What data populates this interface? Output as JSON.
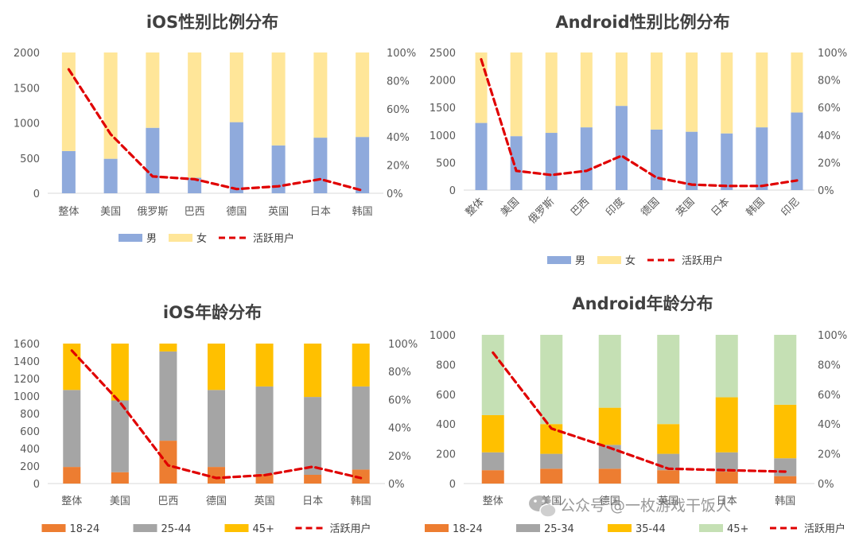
{
  "chart_data": [
    {
      "type": "bar",
      "stacked": true,
      "title": "iOS性别比例分布",
      "categories": [
        "整体",
        "美国",
        "俄罗斯",
        "巴西",
        "德国",
        "英国",
        "日本",
        "韩国"
      ],
      "series": [
        {
          "name": "男",
          "type": "bar",
          "axis": "left",
          "color": "#8FAADC",
          "values": [
            600,
            490,
            930,
            220,
            1010,
            680,
            790,
            800
          ]
        },
        {
          "name": "女",
          "type": "bar",
          "axis": "left",
          "color": "#FFE699",
          "values": [
            1400,
            1510,
            1070,
            1780,
            990,
            1320,
            1210,
            1200
          ]
        },
        {
          "name": "活跃用户",
          "type": "line",
          "axis": "right",
          "color": "#E00000",
          "values": [
            0.88,
            0.42,
            0.12,
            0.1,
            0.03,
            0.05,
            0.1,
            0.02
          ]
        }
      ],
      "y_left": {
        "min": 0,
        "max": 2000,
        "ticks": [
          "0",
          "500",
          "1000",
          "1500",
          "2000"
        ]
      },
      "y_right": {
        "min": 0,
        "max": 1,
        "ticks": [
          "0%",
          "20%",
          "40%",
          "60%",
          "80%",
          "100%"
        ]
      },
      "x_tick_rotation": 0,
      "legend": "bottom",
      "grid": false
    },
    {
      "type": "bar",
      "stacked": true,
      "title": "Android性别比例分布",
      "categories": [
        "整体",
        "美国",
        "俄罗斯",
        "巴西",
        "印度",
        "德国",
        "英国",
        "日本",
        "韩国",
        "印尼"
      ],
      "series": [
        {
          "name": "男",
          "type": "bar",
          "axis": "left",
          "color": "#8FAADC",
          "values": [
            1220,
            980,
            1040,
            1140,
            1530,
            1100,
            1060,
            1030,
            1140,
            1410
          ]
        },
        {
          "name": "女",
          "type": "bar",
          "axis": "left",
          "color": "#FFE699",
          "values": [
            1280,
            1520,
            1460,
            1360,
            970,
            1400,
            1440,
            1470,
            1360,
            1090
          ]
        },
        {
          "name": "活跃用户",
          "type": "line",
          "axis": "right",
          "color": "#E00000",
          "values": [
            0.95,
            0.14,
            0.11,
            0.14,
            0.25,
            0.09,
            0.04,
            0.03,
            0.03,
            0.07
          ]
        }
      ],
      "y_left": {
        "min": 0,
        "max": 2500,
        "ticks": [
          "0",
          "500",
          "1000",
          "1500",
          "2000",
          "2500"
        ]
      },
      "y_right": {
        "min": 0,
        "max": 1,
        "ticks": [
          "0%",
          "20%",
          "40%",
          "60%",
          "80%",
          "100%"
        ]
      },
      "x_tick_rotation": -45,
      "legend": "bottom",
      "grid": false
    },
    {
      "type": "bar",
      "stacked": true,
      "title": "iOS年龄分布",
      "categories": [
        "整体",
        "美国",
        "巴西",
        "德国",
        "英国",
        "日本",
        "韩国"
      ],
      "series": [
        {
          "name": "18-24",
          "type": "bar",
          "axis": "left",
          "color": "#ED7D31",
          "values": [
            190,
            130,
            490,
            190,
            110,
            100,
            160
          ]
        },
        {
          "name": "25-44",
          "type": "bar",
          "axis": "left",
          "color": "#A5A5A5",
          "values": [
            880,
            820,
            1020,
            880,
            1000,
            890,
            950
          ]
        },
        {
          "name": "45+",
          "type": "bar",
          "axis": "left",
          "color": "#FFC000",
          "values": [
            530,
            650,
            90,
            530,
            490,
            610,
            490
          ]
        },
        {
          "name": "活跃用户",
          "type": "line",
          "axis": "right",
          "color": "#E00000",
          "values": [
            0.95,
            0.58,
            0.13,
            0.04,
            0.06,
            0.12,
            0.04
          ]
        }
      ],
      "y_left": {
        "min": 0,
        "max": 1600,
        "ticks": [
          "0",
          "200",
          "400",
          "600",
          "800",
          "1000",
          "1200",
          "1400",
          "1600"
        ]
      },
      "y_right": {
        "min": 0,
        "max": 1,
        "ticks": [
          "0%",
          "20%",
          "40%",
          "60%",
          "80%",
          "100%"
        ]
      },
      "x_tick_rotation": 0,
      "legend": "bottom",
      "grid": false
    },
    {
      "type": "bar",
      "stacked": true,
      "title": "Android年龄分布",
      "categories": [
        "整体",
        "美国",
        "德国",
        "英国",
        "日本",
        "韩国"
      ],
      "series": [
        {
          "name": "18-24",
          "type": "bar",
          "axis": "left",
          "color": "#ED7D31",
          "values": [
            90,
            100,
            100,
            90,
            80,
            50
          ]
        },
        {
          "name": "25-34",
          "type": "bar",
          "axis": "left",
          "color": "#A5A5A5",
          "values": [
            120,
            100,
            160,
            110,
            130,
            120
          ]
        },
        {
          "name": "35-44",
          "type": "bar",
          "axis": "left",
          "color": "#FFC000",
          "values": [
            250,
            200,
            250,
            200,
            370,
            360
          ]
        },
        {
          "name": "45+",
          "type": "bar",
          "axis": "left",
          "color": "#C5E0B4",
          "values": [
            540,
            600,
            490,
            600,
            420,
            470
          ]
        },
        {
          "name": "活跃用户",
          "type": "line",
          "axis": "right",
          "color": "#E00000",
          "values": [
            0.88,
            0.37,
            0.24,
            0.1,
            0.09,
            0.08
          ]
        }
      ],
      "y_left": {
        "min": 0,
        "max": 1000,
        "ticks": [
          "0",
          "200",
          "400",
          "600",
          "800",
          "1000"
        ]
      },
      "y_right": {
        "min": 0,
        "max": 1,
        "ticks": [
          "0%",
          "20%",
          "40%",
          "60%",
          "80%",
          "100%"
        ]
      },
      "x_tick_rotation": 0,
      "legend": "bottom",
      "grid": false
    }
  ],
  "watermark": {
    "text": "公众号 @一枚游戏干饭人",
    "icon": "wechat-icon"
  }
}
